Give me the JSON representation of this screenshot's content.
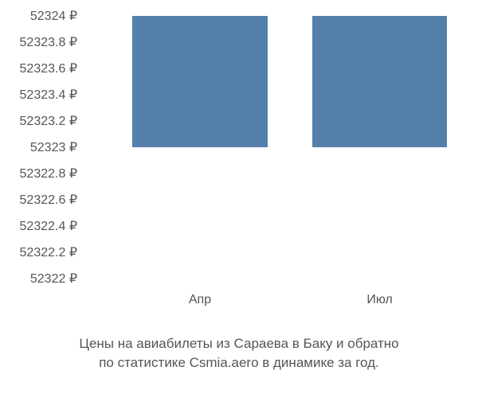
{
  "chart": {
    "type": "bar",
    "y_ticks": [
      {
        "label": "52324 ₽",
        "value": 52324
      },
      {
        "label": "52323.8 ₽",
        "value": 52323.8
      },
      {
        "label": "52323.6 ₽",
        "value": 52323.6
      },
      {
        "label": "52323.4 ₽",
        "value": 52323.4
      },
      {
        "label": "52323.2 ₽",
        "value": 52323.2
      },
      {
        "label": "52323 ₽",
        "value": 52323
      },
      {
        "label": "52322.8 ₽",
        "value": 52322.8
      },
      {
        "label": "52322.6 ₽",
        "value": 52322.6
      },
      {
        "label": "52322.4 ₽",
        "value": 52322.4
      },
      {
        "label": "52322.2 ₽",
        "value": 52322.2
      },
      {
        "label": "52322 ₽",
        "value": 52322
      }
    ],
    "ylim_min": 52322,
    "ylim_max": 52324,
    "value_floor": 52323,
    "bars": [
      {
        "label": "Апр",
        "value": 52324,
        "color": "#5580aa",
        "x_center_pct": 30,
        "width_pct": 36
      },
      {
        "label": "Июл",
        "value": 52324,
        "color": "#5580aa",
        "x_center_pct": 78,
        "width_pct": 36
      }
    ],
    "axis_color": "#555555",
    "tick_fontsize": 16,
    "background_color": "#ffffff"
  },
  "caption": {
    "line1": "Цены на авиабилеты из Сараева в Баку и обратно",
    "line2": "по статистике Csmia.aero в динамике за год.",
    "fontsize": 17,
    "color": "#555555"
  }
}
